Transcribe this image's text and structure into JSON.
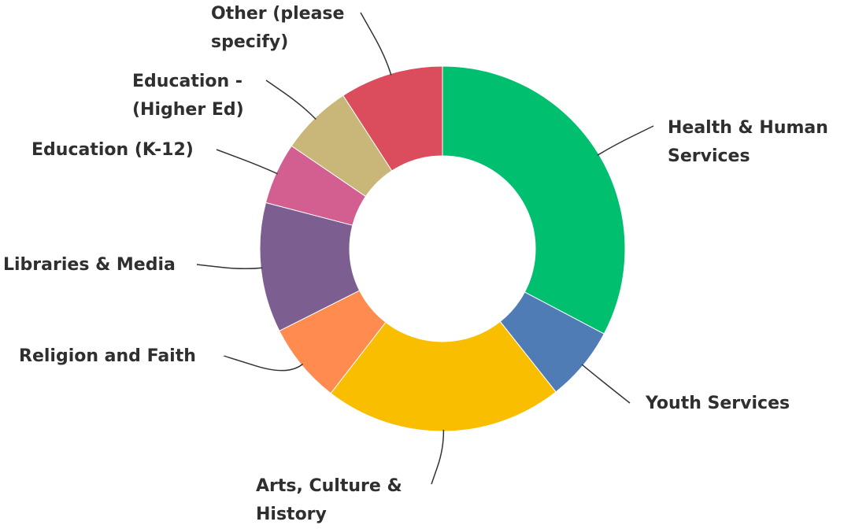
{
  "chart_data": {
    "type": "pie",
    "donut": true,
    "title": "",
    "slices": [
      {
        "label": [
          "Health & Human",
          "Services"
        ],
        "value": 33.6,
        "color": "#00BF6F"
      },
      {
        "label": [
          "Youth Services"
        ],
        "value": 6.8,
        "color": "#507CB6"
      },
      {
        "label": [
          "Arts, Culture &",
          "History"
        ],
        "value": 21.7,
        "color": "#F9BE00"
      },
      {
        "label": [
          "Religion and Faith"
        ],
        "value": 7.3,
        "color": "#FF8B4F"
      },
      {
        "label": [
          "Libraries & Media"
        ],
        "value": 11.8,
        "color": "#7D5E90"
      },
      {
        "label": [
          "Education (K-12)"
        ],
        "value": 5.6,
        "color": "#D25F90"
      },
      {
        "label": [
          "Education -",
          "(Higher Ed)"
        ],
        "value": 6.5,
        "color": "#C9B77A"
      },
      {
        "label": [
          "Other (please",
          "specify)"
        ],
        "value": 9.4,
        "color": "#DB4D5C"
      }
    ]
  }
}
